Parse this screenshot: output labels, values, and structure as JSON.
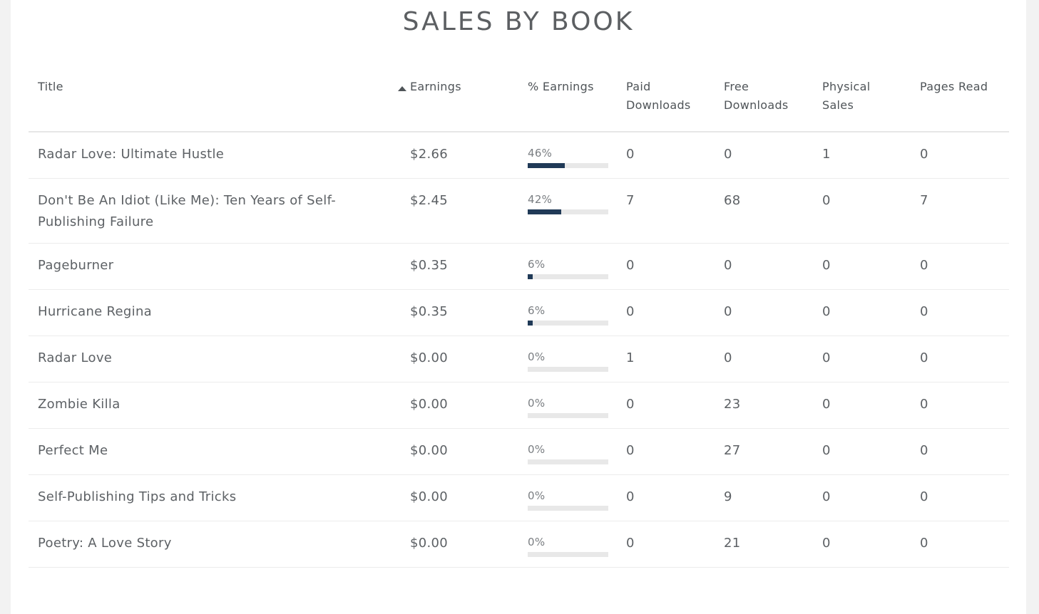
{
  "title": "SALES BY BOOK",
  "columns": {
    "title": "Title",
    "earnings": "Earnings",
    "pct_earnings": "% Earnings",
    "paid_downloads": "Paid Downloads",
    "free_downloads": "Free Downloads",
    "physical_sales": "Physical Sales",
    "pages_read": "Pages Read"
  },
  "colors": {
    "bar_fill": "#203a57",
    "bar_track": "#e8e8e8"
  },
  "rows": [
    {
      "title": "Radar Love: Ultimate Hustle",
      "earnings": "$2.66",
      "pct_label": "46%",
      "pct": 0.46,
      "paid": "0",
      "free": "0",
      "physical": "1",
      "pages": "0"
    },
    {
      "title": "Don't Be An Idiot (Like Me): Ten Years of Self-Publishing Failure",
      "earnings": "$2.45",
      "pct_label": "42%",
      "pct": 0.42,
      "paid": "7",
      "free": "68",
      "physical": "0",
      "pages": "7"
    },
    {
      "title": "Pageburner",
      "earnings": "$0.35",
      "pct_label": "6%",
      "pct": 0.06,
      "paid": "0",
      "free": "0",
      "physical": "0",
      "pages": "0"
    },
    {
      "title": "Hurricane Regina",
      "earnings": "$0.35",
      "pct_label": "6%",
      "pct": 0.06,
      "paid": "0",
      "free": "0",
      "physical": "0",
      "pages": "0"
    },
    {
      "title": "Radar Love",
      "earnings": "$0.00",
      "pct_label": "0%",
      "pct": 0,
      "paid": "1",
      "free": "0",
      "physical": "0",
      "pages": "0"
    },
    {
      "title": "Zombie Killa",
      "earnings": "$0.00",
      "pct_label": "0%",
      "pct": 0,
      "paid": "0",
      "free": "23",
      "physical": "0",
      "pages": "0"
    },
    {
      "title": "Perfect Me",
      "earnings": "$0.00",
      "pct_label": "0%",
      "pct": 0,
      "paid": "0",
      "free": "27",
      "physical": "0",
      "pages": "0"
    },
    {
      "title": "Self-Publishing Tips and Tricks",
      "earnings": "$0.00",
      "pct_label": "0%",
      "pct": 0,
      "paid": "0",
      "free": "9",
      "physical": "0",
      "pages": "0"
    },
    {
      "title": "Poetry: A Love Story",
      "earnings": "$0.00",
      "pct_label": "0%",
      "pct": 0,
      "paid": "0",
      "free": "21",
      "physical": "0",
      "pages": "0"
    }
  ]
}
